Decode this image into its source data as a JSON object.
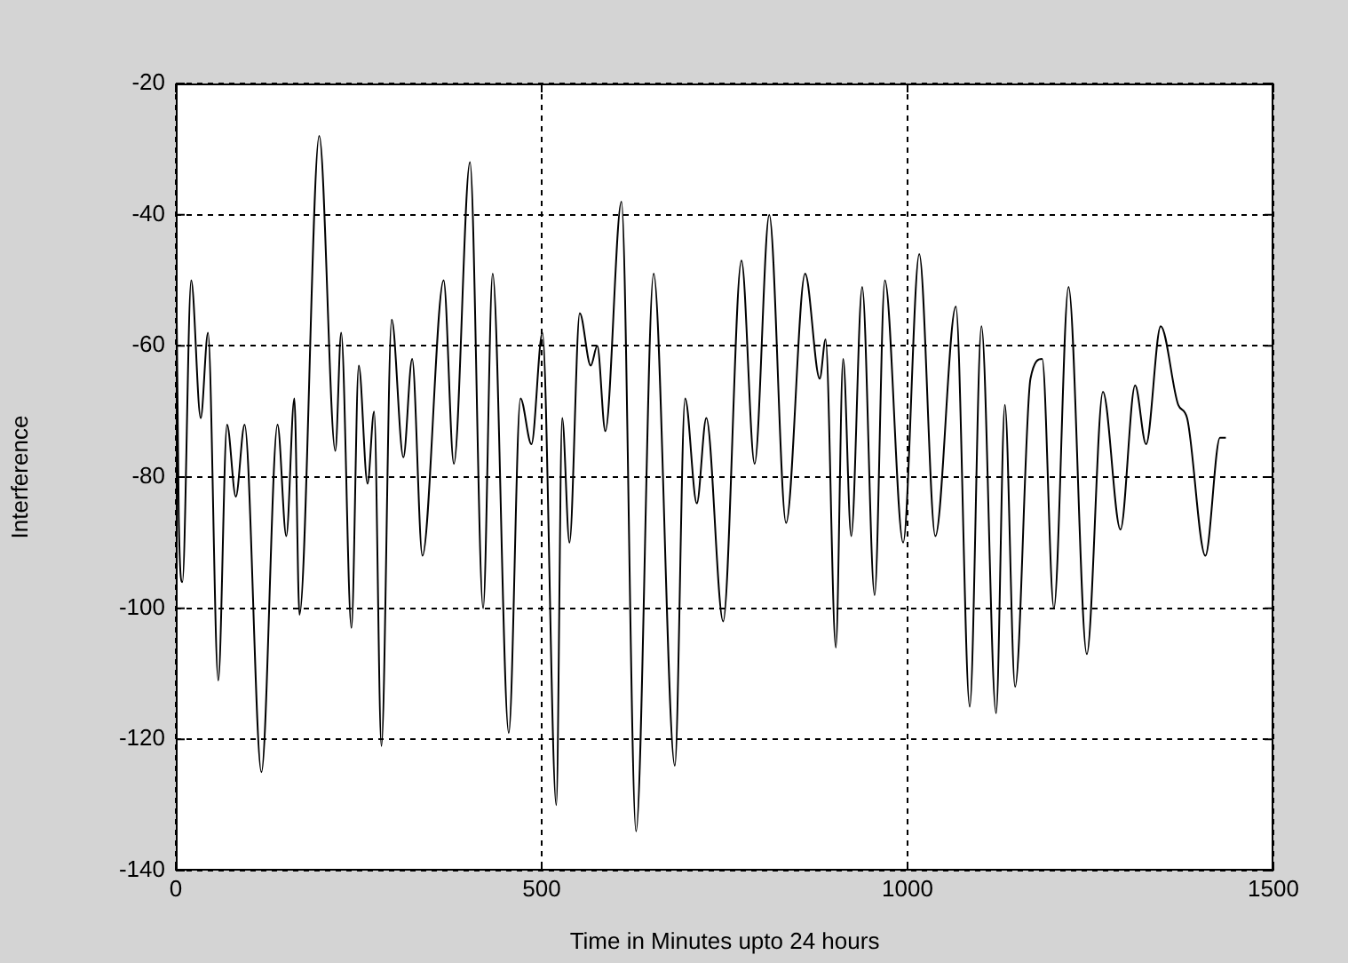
{
  "chart_data": {
    "type": "line",
    "xlabel": "Time in Minutes upto 24 hours",
    "ylabel": "Interference",
    "xlim": [
      0,
      1500
    ],
    "xticks": [
      0,
      500,
      1000,
      1500
    ],
    "ylim": [
      -140,
      -20
    ],
    "yticks": [
      -140,
      -120,
      -100,
      -80,
      -60,
      -40,
      -20
    ],
    "grid": true,
    "legend": false,
    "marker": "none",
    "line_style": "solid",
    "series": [
      {
        "color": "#000000",
        "x": [
          0,
          4,
          9,
          21,
          34,
          44,
          58,
          70,
          82,
          94,
          117,
          139,
          151,
          162,
          169,
          196,
          218,
          226,
          240,
          250,
          262,
          271,
          281,
          295,
          311,
          323,
          337,
          366,
          380,
          402,
          420,
          433,
          455,
          471,
          486,
          501,
          520,
          528,
          538,
          552,
          567,
          576,
          587,
          609,
          629,
          653,
          682,
          696,
          712,
          725,
          748,
          773,
          791,
          811,
          834,
          860,
          880,
          888,
          902,
          912,
          923,
          938,
          955,
          969,
          994,
          1016,
          1038,
          1066,
          1085,
          1101,
          1121,
          1133,
          1147,
          1168,
          1184,
          1200,
          1220,
          1245,
          1267,
          1291,
          1311,
          1326,
          1346,
          1370,
          1382,
          1407,
          1427,
          1435
        ],
        "values": [
          -40,
          -86,
          -96,
          -50,
          -71,
          -58,
          -111,
          -72,
          -83,
          -72,
          -125,
          -72,
          -89,
          -68,
          -101,
          -28,
          -76,
          -58,
          -103,
          -63,
          -81,
          -70,
          -121,
          -56,
          -77,
          -62,
          -92,
          -50,
          -78,
          -32,
          -100,
          -49,
          -119,
          -68,
          -75,
          -58,
          -130,
          -71,
          -90,
          -55,
          -63,
          -60,
          -73,
          -38,
          -134,
          -49,
          -124,
          -68,
          -84,
          -71,
          -102,
          -47,
          -78,
          -40,
          -87,
          -49,
          -65,
          -59,
          -106,
          -62,
          -89,
          -51,
          -98,
          -50,
          -90,
          -46,
          -89,
          -54,
          -115,
          -57,
          -116,
          -69,
          -112,
          -65,
          -62,
          -100,
          -51,
          -107,
          -67,
          -88,
          -66,
          -75,
          -57,
          -69,
          -71,
          -92,
          -74,
          -74
        ]
      }
    ]
  }
}
